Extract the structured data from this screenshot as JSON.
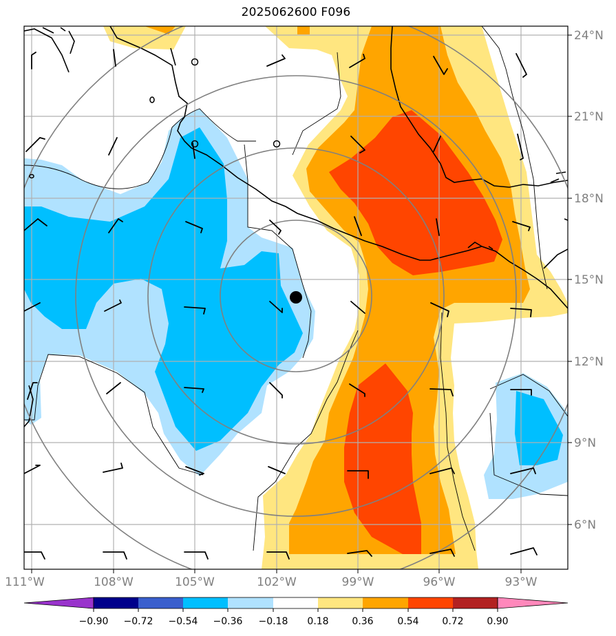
{
  "title": "2025062600 F096",
  "map": {
    "lon_labels": [
      "111°W",
      "108°W",
      "105°W",
      "102°W",
      "99°W",
      "96°W",
      "93°W"
    ],
    "lat_labels": [
      "24°N",
      "21°N",
      "18°N",
      "15°N",
      "12°N",
      "9°N",
      "6°N"
    ],
    "storm_center": {
      "lon": "101.3°W",
      "lat": "14.3°N"
    }
  },
  "colorbar": {
    "tick_labels": [
      "−0.90",
      "−0.72",
      "−0.54",
      "−0.36",
      "−0.18",
      "0.18",
      "0.36",
      "0.54",
      "0.72",
      "0.90"
    ],
    "colors": [
      "#9933cc",
      "#00008b",
      "#3a5fcd",
      "#00bfff",
      "#b0e2ff",
      "#ffffff",
      "#ffe680",
      "#ffa500",
      "#ff4500",
      "#b22222",
      "#ff88bb"
    ]
  }
}
